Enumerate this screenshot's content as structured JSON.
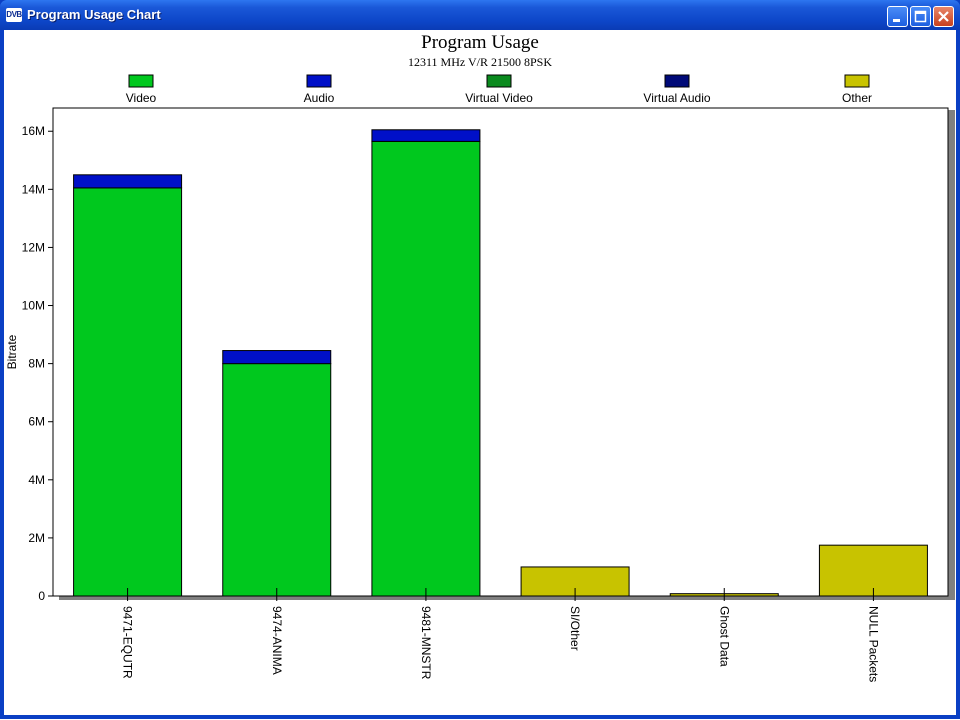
{
  "window": {
    "title": "Program Usage Chart",
    "icon_text": "DVB"
  },
  "colors": {
    "video": "#00c81e",
    "audio": "#0010c8",
    "virtual_video": "#0a8a1e",
    "virtual_audio": "#000a78",
    "other": "#c8c300"
  },
  "chart_data": {
    "type": "bar",
    "stacked": true,
    "title": "Program Usage",
    "subtitle": "12311 MHz V/R 21500 8PSK",
    "ylabel": "Bitrate",
    "xlabel": "",
    "ylim": [
      0,
      16800000
    ],
    "yticks": [
      0,
      2000000,
      4000000,
      6000000,
      8000000,
      10000000,
      12000000,
      14000000,
      16000000
    ],
    "ytick_labels": [
      "0",
      "2M",
      "4M",
      "6M",
      "8M",
      "10M",
      "12M",
      "14M",
      "16M"
    ],
    "categories": [
      "9471-EQUTR",
      "9474-ANIMA",
      "9481-MNSTR",
      "SI/Other",
      "Ghost Data",
      "NULL Packets"
    ],
    "legend_position": "top",
    "grid": false,
    "series": [
      {
        "name": "Video",
        "color_key": "video",
        "values": [
          14050000,
          8000000,
          15650000,
          0,
          0,
          0
        ]
      },
      {
        "name": "Audio",
        "color_key": "audio",
        "values": [
          450000,
          450000,
          400000,
          0,
          0,
          0
        ]
      },
      {
        "name": "Virtual Video",
        "color_key": "virtual_video",
        "values": [
          0,
          0,
          0,
          0,
          0,
          0
        ]
      },
      {
        "name": "Virtual Audio",
        "color_key": "virtual_audio",
        "values": [
          0,
          0,
          0,
          0,
          0,
          0
        ]
      },
      {
        "name": "Other",
        "color_key": "other",
        "values": [
          0,
          0,
          0,
          1000000,
          80000,
          1750000
        ]
      }
    ]
  }
}
